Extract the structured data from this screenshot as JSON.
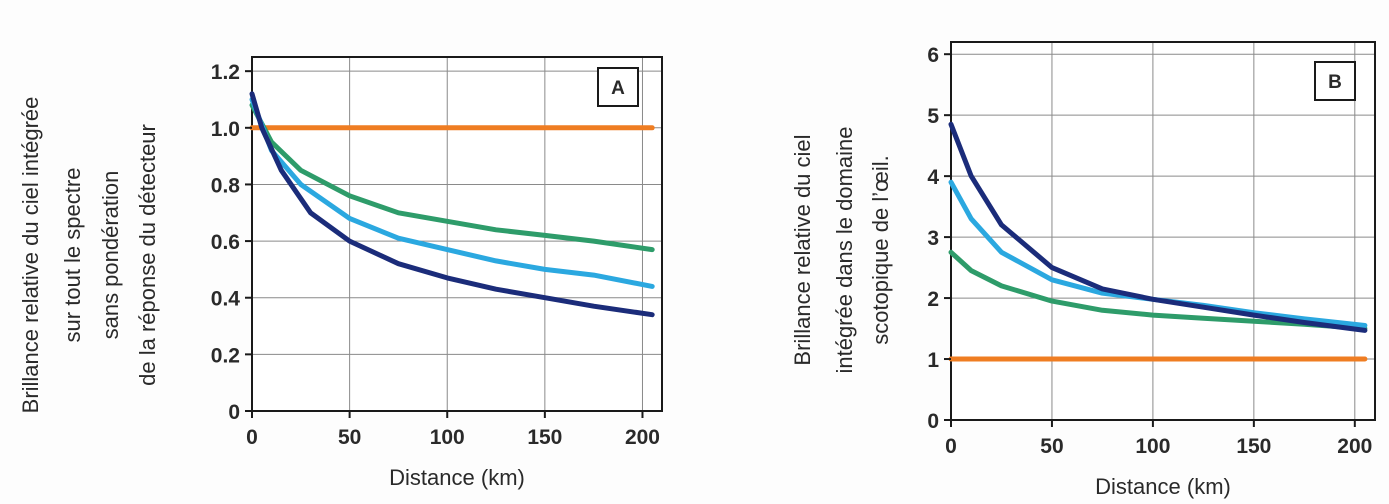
{
  "chart_data": [
    {
      "type": "line",
      "panel_label": "A",
      "ylabel_lines": [
        "Brillance relative du ciel intégrée",
        "sur tout le spectre",
        "sans pondération",
        "de la réponse du détecteur"
      ],
      "xlabel": "Distance (km)",
      "xlim": [
        0,
        210
      ],
      "ylim": [
        0,
        1.25
      ],
      "xticks": [
        0,
        50,
        100,
        150,
        200
      ],
      "xtick_labels": [
        "0",
        "50",
        "100",
        "150",
        "200"
      ],
      "yticks": [
        0,
        0.2,
        0.4,
        0.6,
        0.8,
        1.0,
        1.2
      ],
      "ytick_labels": [
        "0",
        "0.2",
        "0.4",
        "0.6",
        "0.8",
        "1.0",
        "1.2"
      ],
      "grid": true,
      "series": [
        {
          "color": "#ef7d22",
          "x": [
            0,
            50,
            100,
            150,
            205
          ],
          "y": [
            1.0,
            1.0,
            1.0,
            1.0,
            1.0
          ]
        },
        {
          "color": "#2e9c6a",
          "x": [
            0,
            10,
            25,
            50,
            75,
            100,
            125,
            150,
            175,
            205
          ],
          "y": [
            1.08,
            0.95,
            0.85,
            0.76,
            0.7,
            0.67,
            0.64,
            0.62,
            0.6,
            0.57
          ]
        },
        {
          "color": "#2ba8e0",
          "x": [
            0,
            10,
            25,
            50,
            75,
            100,
            125,
            150,
            175,
            205
          ],
          "y": [
            1.1,
            0.92,
            0.8,
            0.68,
            0.61,
            0.57,
            0.53,
            0.5,
            0.48,
            0.44
          ]
        },
        {
          "color": "#1b2c7a",
          "x": [
            0,
            5,
            15,
            30,
            50,
            75,
            100,
            125,
            150,
            175,
            205
          ],
          "y": [
            1.12,
            1.0,
            0.85,
            0.7,
            0.6,
            0.52,
            0.47,
            0.43,
            0.4,
            0.37,
            0.34
          ]
        }
      ]
    },
    {
      "type": "line",
      "panel_label": "B",
      "ylabel_lines": [
        "Brillance relative du ciel",
        "intégrée dans le domaine",
        "scotopique de l’œil."
      ],
      "xlabel": "Distance (km)",
      "xlim": [
        0,
        210
      ],
      "ylim": [
        0,
        6.2
      ],
      "xticks": [
        0,
        50,
        100,
        150,
        200
      ],
      "xtick_labels": [
        "0",
        "50",
        "100",
        "150",
        "200"
      ],
      "yticks": [
        0,
        1,
        2,
        3,
        4,
        5,
        6
      ],
      "ytick_labels": [
        "0",
        "1",
        "2",
        "3",
        "4",
        "5",
        "6"
      ],
      "grid": true,
      "series": [
        {
          "color": "#ef7d22",
          "x": [
            0,
            50,
            100,
            150,
            205
          ],
          "y": [
            1.0,
            1.0,
            1.0,
            1.0,
            1.0
          ]
        },
        {
          "color": "#2e9c6a",
          "x": [
            0,
            10,
            25,
            50,
            75,
            100,
            125,
            150,
            175,
            205
          ],
          "y": [
            2.75,
            2.45,
            2.2,
            1.95,
            1.8,
            1.72,
            1.67,
            1.62,
            1.57,
            1.5
          ]
        },
        {
          "color": "#2ba8e0",
          "x": [
            0,
            10,
            25,
            50,
            75,
            100,
            125,
            150,
            175,
            205
          ],
          "y": [
            3.9,
            3.3,
            2.75,
            2.3,
            2.08,
            1.98,
            1.88,
            1.76,
            1.66,
            1.55
          ]
        },
        {
          "color": "#1b2c7a",
          "x": [
            0,
            10,
            25,
            50,
            75,
            100,
            125,
            150,
            175,
            205
          ],
          "y": [
            4.85,
            4.0,
            3.2,
            2.5,
            2.15,
            1.98,
            1.85,
            1.72,
            1.6,
            1.47
          ]
        }
      ]
    }
  ]
}
